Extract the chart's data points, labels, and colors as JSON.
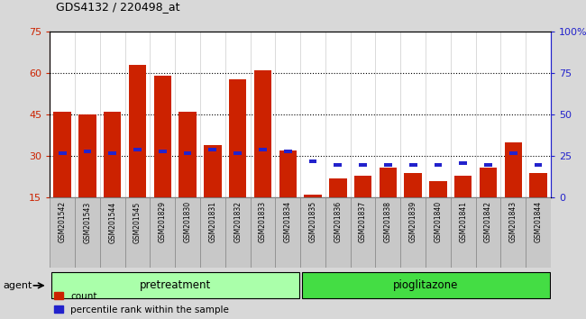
{
  "title": "GDS4132 / 220498_at",
  "samples": [
    "GSM201542",
    "GSM201543",
    "GSM201544",
    "GSM201545",
    "GSM201829",
    "GSM201830",
    "GSM201831",
    "GSM201832",
    "GSM201833",
    "GSM201834",
    "GSM201835",
    "GSM201836",
    "GSM201837",
    "GSM201838",
    "GSM201839",
    "GSM201840",
    "GSM201841",
    "GSM201842",
    "GSM201843",
    "GSM201844"
  ],
  "count_values": [
    46,
    45,
    46,
    63,
    59,
    46,
    34,
    58,
    61,
    32,
    16,
    22,
    23,
    26,
    24,
    21,
    23,
    26,
    35,
    24
  ],
  "percentile_values": [
    27,
    28,
    27,
    29,
    28,
    27,
    29,
    27,
    29,
    28,
    22,
    20,
    20,
    20,
    20,
    20,
    21,
    20,
    27,
    20
  ],
  "count_color": "#cc2200",
  "percentile_color": "#2222cc",
  "ylim_left": [
    15,
    75
  ],
  "ylim_right": [
    0,
    100
  ],
  "yticks_left": [
    15,
    30,
    45,
    60,
    75
  ],
  "yticks_right": [
    0,
    25,
    50,
    75,
    100
  ],
  "ytick_labels_right": [
    "0",
    "25",
    "50",
    "75",
    "100%"
  ],
  "pretreatment_color": "#aaffaa",
  "pioglitazone_color": "#44dd44",
  "group_band_bg": "#c8c8c8",
  "agent_label": "agent",
  "legend_count": "count",
  "legend_percentile": "percentile rank within the sample",
  "bar_width": 0.7,
  "background_color": "#d8d8d8",
  "plot_bg_color": "#ffffff",
  "xtick_bg_color": "#c8c8c8",
  "left_axis_color": "#cc2200",
  "right_axis_color": "#2222cc",
  "grid_yticks": [
    30,
    45,
    60
  ],
  "n_pretreatment": 10,
  "n_total": 20
}
